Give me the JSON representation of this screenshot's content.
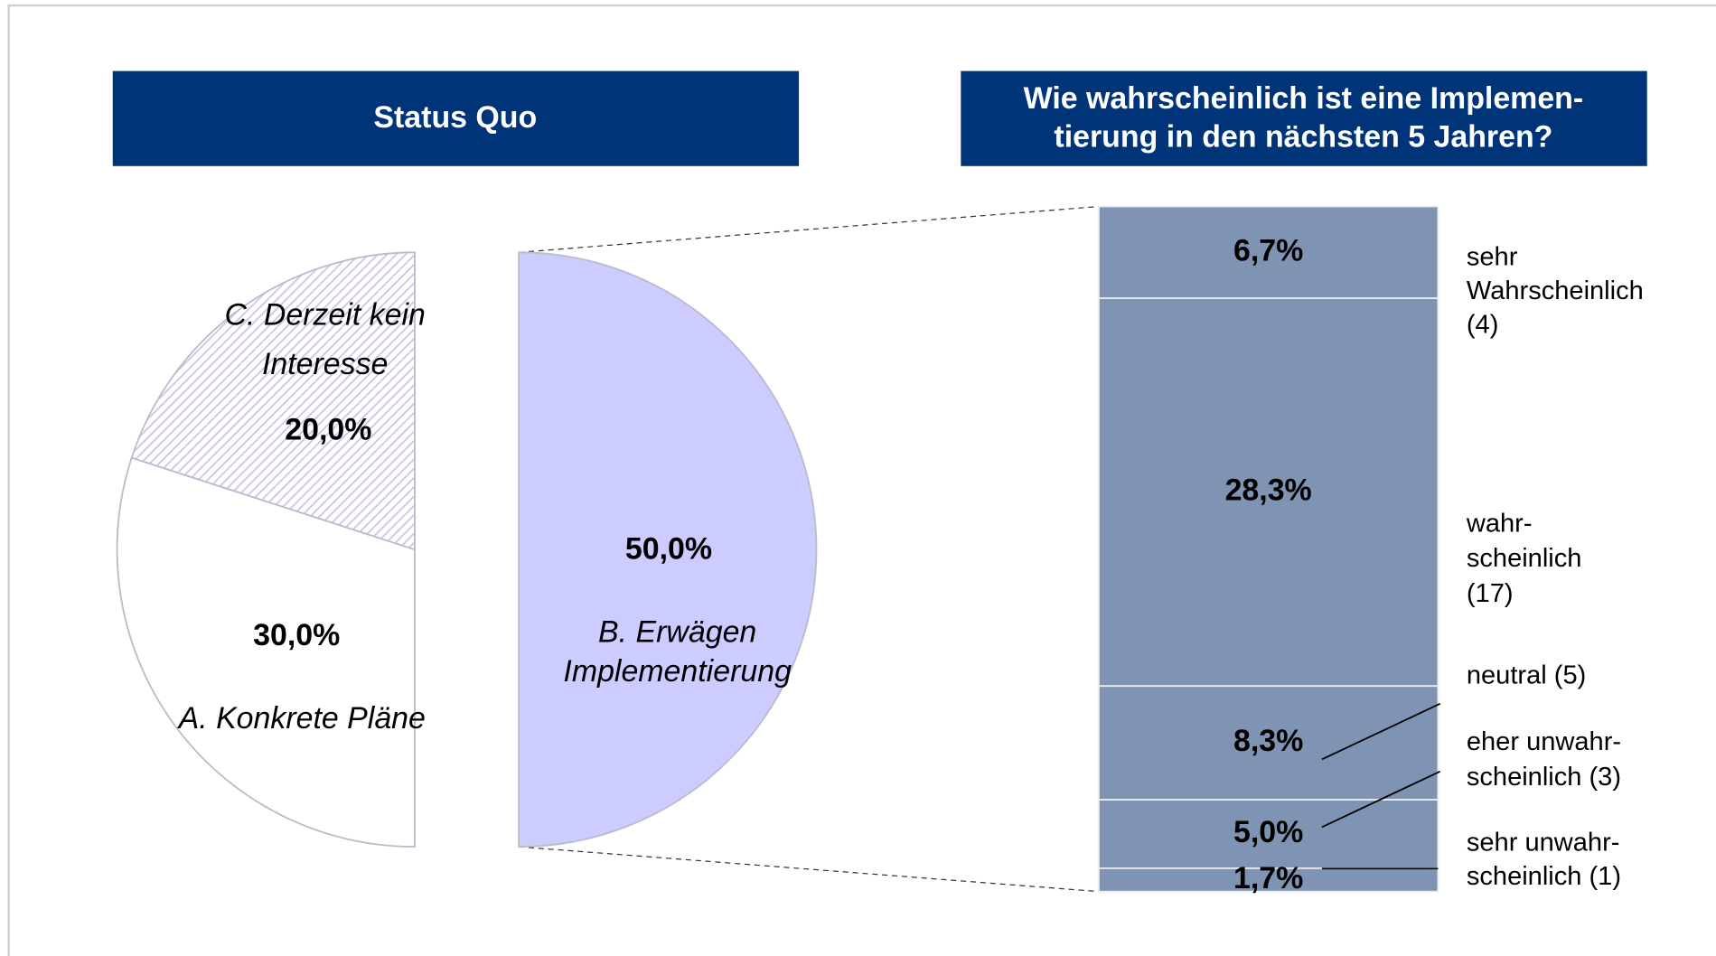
{
  "chart_data": [
    {
      "type": "pie",
      "title": "Status Quo",
      "categories": [
        "A. Konkrete Pläne",
        "C. Derzeit kein\nInteresse",
        "B. Erwägen\nImplementierung"
      ],
      "values": [
        30,
        20,
        50
      ],
      "value_labels": [
        "30,0%",
        "20,0%",
        "50,0%"
      ],
      "colors": [
        "#ffffff",
        "#c8c8e6",
        "#ccccff"
      ]
    },
    {
      "type": "bar",
      "title": "Wie wahrscheinlich ist eine Implemen-\ntierung in den nächsten 5 Jahren?",
      "categories": [
        "sehr\nWahrscheinlich\n(4)",
        "wahr-\nscheinlich\n(17)",
        "neutral (5)",
        "eher unwahr-\nscheinlich (3)",
        "sehr unwahr-\nscheinlich (1)"
      ],
      "values": [
        6.7,
        28.3,
        8.3,
        5.0,
        1.7
      ],
      "value_labels": [
        "6,7%",
        "28,3%",
        "8,3%",
        "5,0%",
        "1,7%"
      ],
      "color": "#7f93b3",
      "ylim": [
        0,
        50
      ]
    }
  ]
}
